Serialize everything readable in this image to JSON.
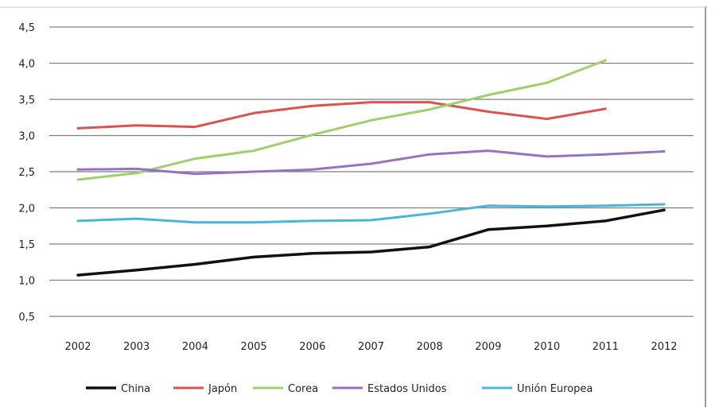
{
  "chart_data": {
    "type": "line",
    "title": "",
    "xlabel": "",
    "ylabel": "",
    "categories": [
      "2002",
      "2003",
      "2004",
      "2005",
      "2006",
      "2007",
      "2008",
      "2009",
      "2010",
      "2011",
      "2012"
    ],
    "ylim": [
      0.5,
      4.5
    ],
    "yticks": [
      0.5,
      1.0,
      1.5,
      2.0,
      2.5,
      3.0,
      3.5,
      4.0,
      4.5
    ],
    "ytick_labels": [
      "0,5",
      "1,0",
      "1,5",
      "2,0",
      "2,5",
      "3,0",
      "3,5",
      "4,0",
      "4,5"
    ],
    "grid": true,
    "legend_position": "bottom",
    "series": [
      {
        "name": "China",
        "color": "#111111",
        "values": [
          1.07,
          1.14,
          1.22,
          1.32,
          1.37,
          1.39,
          1.46,
          1.7,
          1.75,
          1.82,
          1.97
        ]
      },
      {
        "name": "Japón",
        "color": "#d9534f",
        "values": [
          3.1,
          3.14,
          3.12,
          3.31,
          3.41,
          3.46,
          3.46,
          3.33,
          3.23,
          3.37,
          null
        ]
      },
      {
        "name": "Corea",
        "color": "#9fcf6b",
        "values": [
          2.39,
          2.48,
          2.68,
          2.79,
          3.01,
          3.21,
          3.36,
          3.56,
          3.73,
          4.04,
          null
        ]
      },
      {
        "name": "Estados Unidos",
        "color": "#9673c0",
        "values": [
          2.53,
          2.54,
          2.47,
          2.5,
          2.53,
          2.61,
          2.74,
          2.79,
          2.71,
          2.74,
          2.78
        ]
      },
      {
        "name": "Unión Europea",
        "color": "#4ab6d6",
        "values": [
          1.82,
          1.85,
          1.8,
          1.8,
          1.82,
          1.83,
          1.92,
          2.03,
          2.02,
          2.03,
          2.05
        ]
      }
    ]
  }
}
